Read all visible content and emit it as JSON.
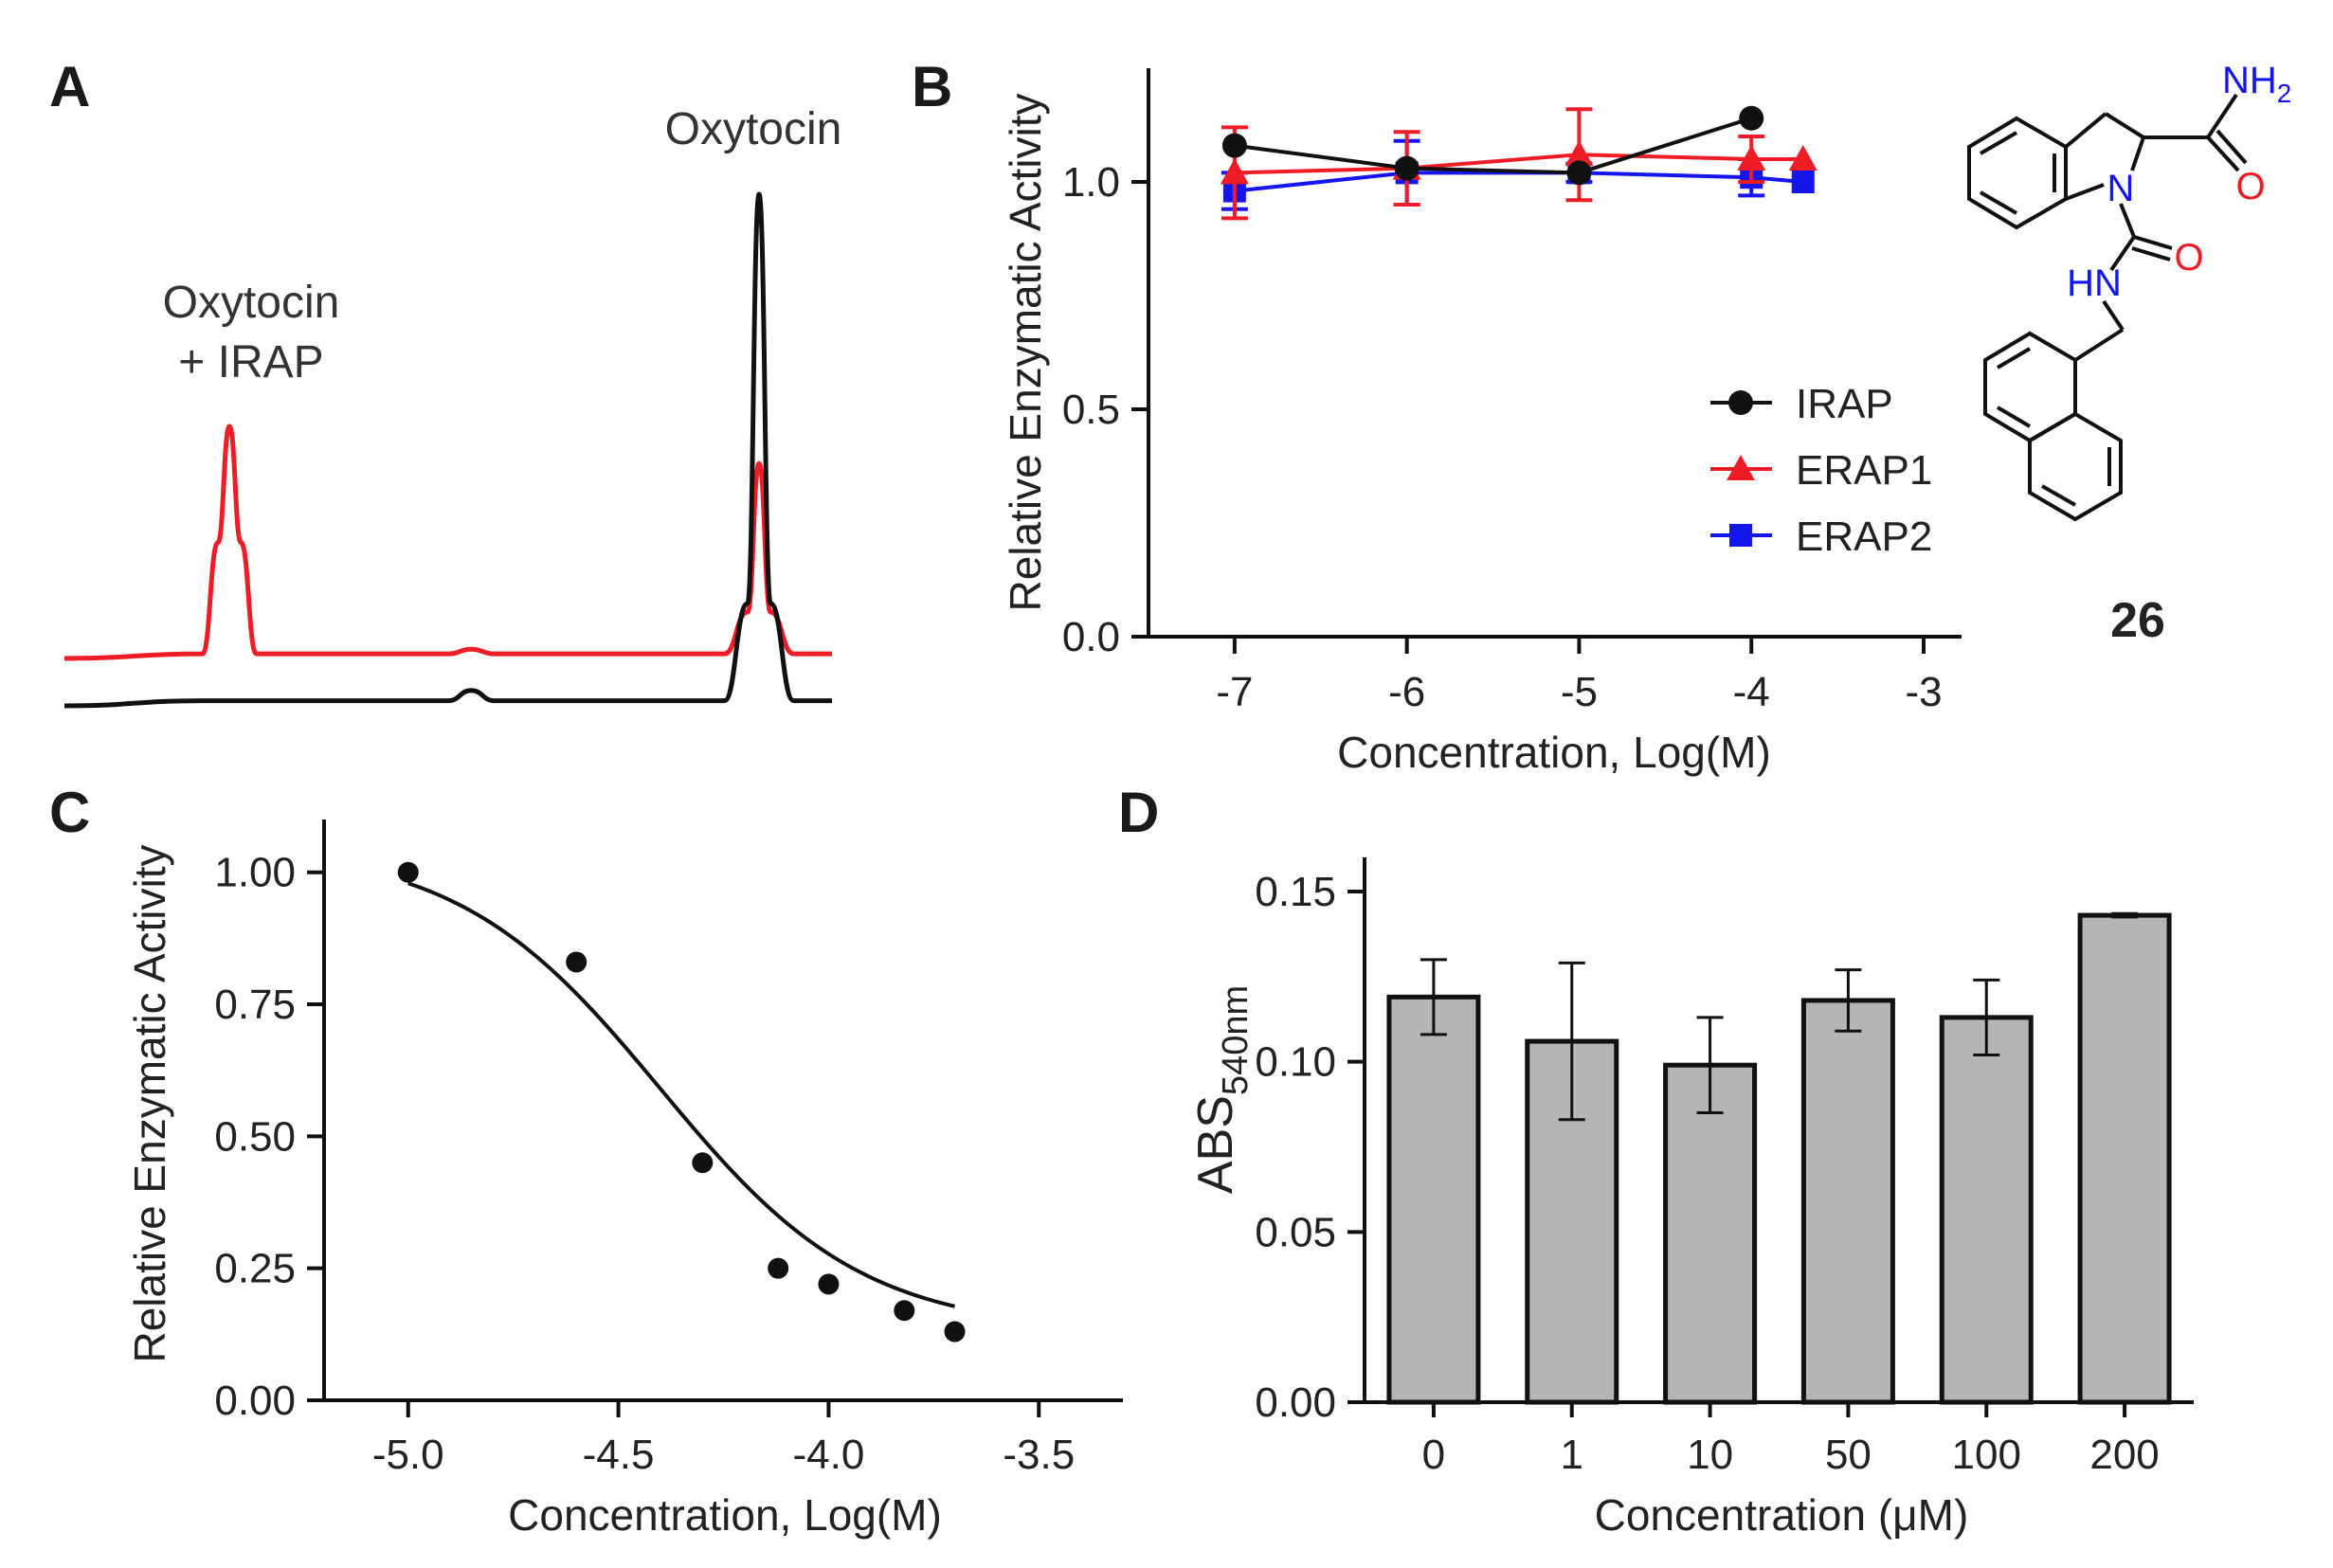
{
  "colors": {
    "black": "#111111",
    "red": "#ee1c25",
    "blue": "#1515ee",
    "bar_fill": "#b5b5b5"
  },
  "panels": {
    "A": {
      "letter": "A",
      "label_peak1_line1": "Oxytocin",
      "label_peak1_line2": "+ IRAP",
      "label_peak2": "Oxytocin"
    },
    "B": {
      "letter": "B"
    },
    "C": {
      "letter": "C"
    },
    "D": {
      "letter": "D"
    }
  },
  "compound": {
    "number": "26",
    "atoms": {
      "N1": "N",
      "O1": "O",
      "O2": "O",
      "NH": "HN",
      "NH2_N": "NH",
      "NH2_sub": "2"
    },
    "name": "indoline-2-carboxamide urea with naphthalen-1-ylmethyl"
  },
  "chart_data": [
    {
      "panel": "A",
      "type": "line",
      "title": "",
      "xlabel": "",
      "ylabel": "",
      "series": [
        {
          "name": "Oxytocin + IRAP",
          "color": "red",
          "x": [
            0,
            0.18,
            0.2,
            0.215,
            0.23,
            0.25,
            0.4,
            0.5,
            0.53,
            0.56,
            0.6,
            0.86,
            0.89,
            0.905,
            0.92,
            0.95,
            1.0
          ],
          "y": [
            0.0,
            0.01,
            0.25,
            0.5,
            0.25,
            0.01,
            0.01,
            0.01,
            0.02,
            0.01,
            0.01,
            0.01,
            0.1,
            0.42,
            0.1,
            0.01,
            0.01
          ]
        },
        {
          "name": "Oxytocin",
          "color": "black",
          "x": [
            0,
            0.18,
            0.2,
            0.215,
            0.23,
            0.25,
            0.4,
            0.5,
            0.53,
            0.56,
            0.6,
            0.86,
            0.89,
            0.905,
            0.92,
            0.95,
            1.0
          ],
          "y": [
            0.0,
            0.01,
            0.01,
            0.01,
            0.01,
            0.01,
            0.01,
            0.01,
            0.03,
            0.01,
            0.01,
            0.01,
            0.2,
            1.0,
            0.2,
            0.01,
            0.01
          ]
        }
      ]
    },
    {
      "panel": "B",
      "type": "line",
      "title": "",
      "xlabel": "Concentration, Log(M)",
      "ylabel": "Relative Enzymatic Activity",
      "xlim": [
        -7.5,
        -3
      ],
      "ylim": [
        0,
        1.25
      ],
      "xticks": [
        "-7",
        "-6",
        "-5",
        "-4",
        "-3"
      ],
      "yticks": [
        "0.0",
        "0.5",
        "1.0"
      ],
      "legend_position": "right",
      "series": [
        {
          "name": "IRAP",
          "color": "black",
          "marker": "circle",
          "x": [
            -7,
            -6,
            -5,
            -4
          ],
          "y": [
            1.08,
            1.03,
            1.02,
            1.14
          ],
          "err": [
            0,
            0,
            0,
            0
          ]
        },
        {
          "name": "ERAP1",
          "color": "red",
          "marker": "triangle",
          "x": [
            -7,
            -6,
            -5,
            -4,
            -3.7
          ],
          "y": [
            1.02,
            1.03,
            1.06,
            1.05,
            1.05
          ],
          "err": [
            0.1,
            0.08,
            0.1,
            0.05,
            0
          ]
        },
        {
          "name": "ERAP2",
          "color": "blue",
          "marker": "square",
          "x": [
            -7,
            -6,
            -5,
            -4,
            -3.7
          ],
          "y": [
            0.98,
            1.02,
            1.02,
            1.01,
            1.0
          ],
          "err": [
            0.04,
            0.07,
            0.02,
            0.04,
            0
          ]
        }
      ]
    },
    {
      "panel": "C",
      "type": "scatter",
      "title": "",
      "xlabel": "Concentration, Log(M)",
      "ylabel": "Relative Enzymatic Activity",
      "xlim": [
        -5.2,
        -3.3
      ],
      "ylim": [
        0,
        1.1
      ],
      "xticks": [
        "-5.0",
        "-4.5",
        "-4.0",
        "-3.5"
      ],
      "yticks": [
        "0.00",
        "0.25",
        "0.50",
        "0.75",
        "1.00"
      ],
      "x": [
        -5.0,
        -4.6,
        -4.3,
        -4.12,
        -4.0,
        -3.82,
        -3.7
      ],
      "y": [
        1.0,
        0.83,
        0.45,
        0.25,
        0.22,
        0.17,
        0.13
      ],
      "fit": {
        "model": "sigmoid",
        "top": 1.05,
        "bottom": 0.13,
        "logIC50": -4.4,
        "hill": 1.8
      }
    },
    {
      "panel": "D",
      "type": "bar",
      "title": "",
      "xlabel": "Concentration (μM)",
      "ylabel_main": "ABS",
      "ylabel_sub": "540nm",
      "ylim": [
        0,
        0.16
      ],
      "yticks": [
        "0.00",
        "0.05",
        "0.10",
        "0.15"
      ],
      "categories": [
        "0",
        "1",
        "10",
        "50",
        "100",
        "200"
      ],
      "values": [
        0.119,
        0.106,
        0.099,
        0.118,
        0.113,
        0.143
      ],
      "err": [
        0.011,
        0.023,
        0.014,
        0.009,
        0.011,
        0.0005
      ]
    }
  ]
}
